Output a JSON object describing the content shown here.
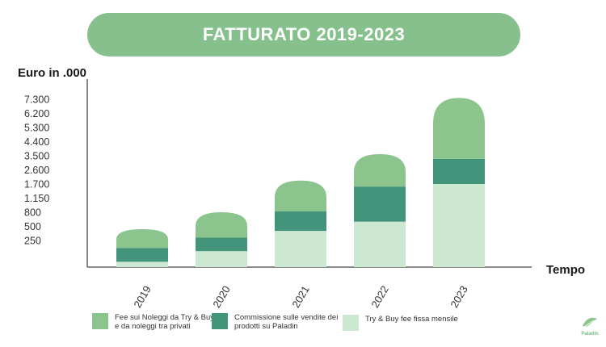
{
  "chart_data": {
    "type": "bar",
    "stacked": true,
    "title": "FATTURATO 2019-2023",
    "ylabel": "Euro in .000",
    "xlabel": "Tempo",
    "y_tick_labels": [
      "250",
      "500",
      "800",
      "1.150",
      "1.700",
      "2.600",
      "3.500",
      "4.400",
      "5.300",
      "6.200",
      "7.300"
    ],
    "categories": [
      "2019",
      "2020",
      "2021",
      "2022",
      "2023"
    ],
    "series": [
      {
        "name": "Try & Buy fee fissa mensile",
        "values": [
          50,
          150,
          420,
          600,
          1700
        ],
        "color": "#cde8d1"
      },
      {
        "name": "Commissione sulle vendite dei prodotti su Paladin",
        "values": [
          130,
          150,
          400,
          1000,
          1600
        ],
        "color": "#42957a"
      },
      {
        "name": "Fee sui Noleggi da Try & Buy e da noleggi tra privati",
        "values": [
          270,
          500,
          1100,
          2000,
          4100
        ],
        "color": "#8cc48e"
      }
    ],
    "legend_order": [
      2,
      1,
      0
    ],
    "legend_position": "bottom",
    "grid": false
  },
  "brand": {
    "name": "Paladin",
    "accent": "#86c18d"
  }
}
